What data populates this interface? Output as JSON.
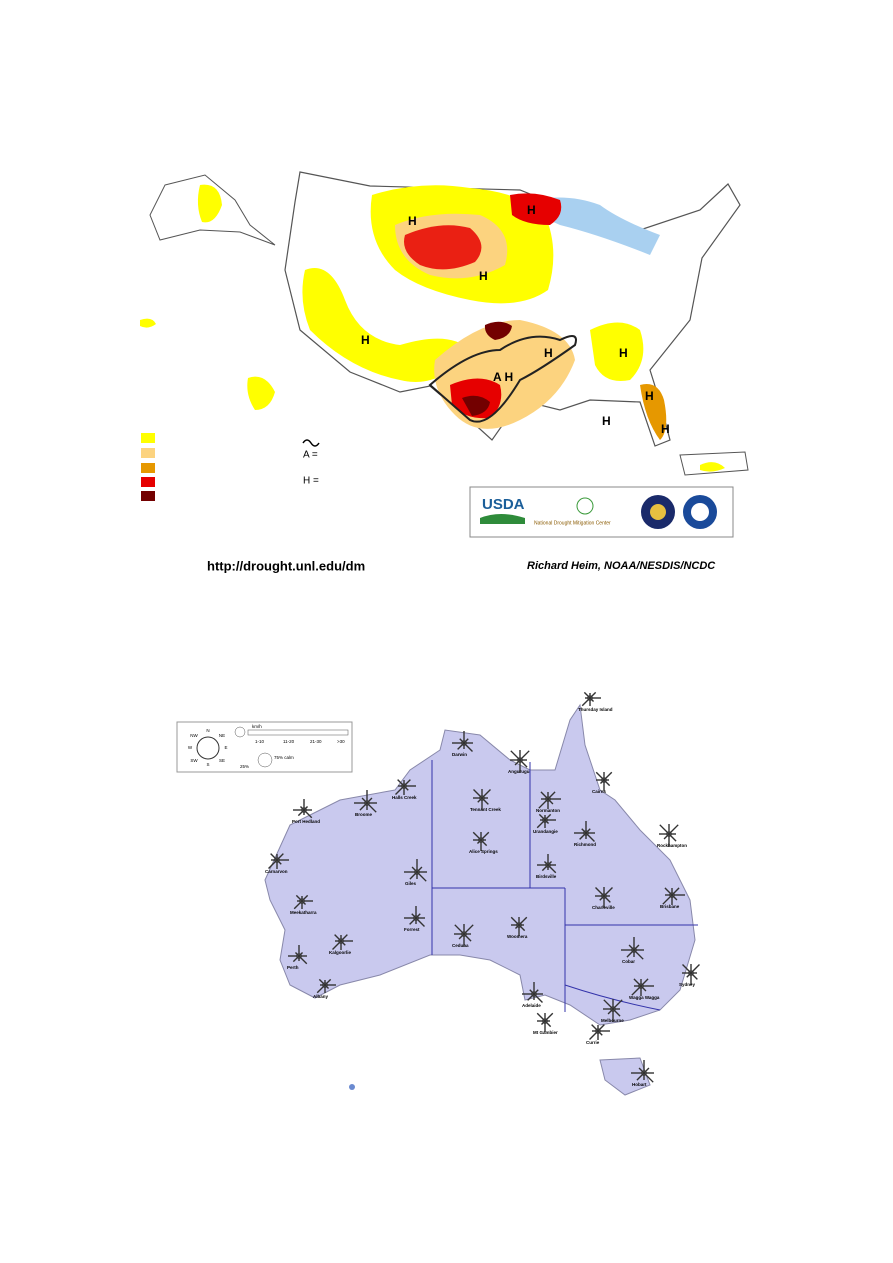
{
  "us_map": {
    "region_labels": [
      "H",
      "H",
      "H",
      "H",
      "H",
      "A H",
      "H",
      "H",
      "H",
      "H"
    ],
    "legend": {
      "a_note": "A =",
      "h_note": "H ="
    },
    "logos": {
      "usda": "USDA",
      "ndmc": "National Drought Mitigation Center"
    },
    "source_url": "http://drought.unl.edu/dm",
    "credit": "Richard Heim, NOAA/NESDIS/NCDC"
  },
  "australia_map": {
    "legend": {
      "directions": [
        "N",
        "NE",
        "E",
        "SE",
        "S",
        "SW",
        "W",
        "NW"
      ],
      "speed_unit": "km/h",
      "speed_classes": [
        "1-10",
        "11-20",
        "21-30",
        ">30"
      ],
      "scale": "25%",
      "calm": "75% calm"
    },
    "stations": [
      "Thursday Island",
      "Darwin",
      "Angurugu",
      "Cairns",
      "Halls Creek",
      "Broome",
      "Port Hedland",
      "Tennant Creek",
      "Normanton",
      "Urandangie",
      "Richmond",
      "Rockhampton",
      "Alice Springs",
      "Carnarvon",
      "Giles",
      "Birdsville",
      "Charleville",
      "Brisbane",
      "Meekatharra",
      "Forrest",
      "Ceduna",
      "Woomera",
      "Kalgoorlie",
      "Cobar",
      "Perth",
      "Sydney",
      "Wagga Wagga",
      "Albany",
      "Adelaide",
      "Melbourne",
      "Mt Gambier",
      "Currie",
      "Hobart"
    ]
  }
}
